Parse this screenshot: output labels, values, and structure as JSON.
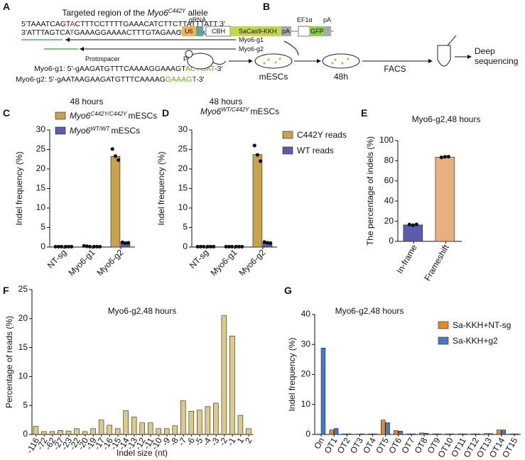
{
  "panel_labels": [
    "A",
    "B",
    "C",
    "D",
    "E",
    "F",
    "G"
  ],
  "diagram_a": {
    "title_pre": "Targeted region of the ",
    "title_gene": "Myo6",
    "title_allele": "C442Y",
    "title_post": " allele",
    "top_strand": [
      "5'TAAATCAGT",
      "A",
      "CTTTCCTTTTGAAACATCTTCTTATTTATT 3'"
    ],
    "bottom_strand": [
      "3'ATTTAGTCA",
      "T",
      "GAAAGGAAAACTTTGTAGAAGAATAAAATAA 5'"
    ],
    "guide_labels": [
      "Myo6-g1",
      "Myo6-g2"
    ],
    "protospacer": "Protospacer",
    "pam": "PAM",
    "g1_sequence": [
      "Myo6-g1: 5'-gAAGATGTTTCAAAAGGAAAGT",
      "ACTGAT",
      "-3'"
    ],
    "g2_sequence": [
      "Myo6-g2: 5'-gAATAAGAAGATGTTTCAAAAG",
      "GAAAG",
      "T",
      "-3'"
    ]
  },
  "diagram_b": {
    "construct": [
      "gRNA",
      "U6",
      "CBH",
      "SaCas9-KKH",
      "pA",
      "EF1α",
      "GFP",
      "pA"
    ],
    "cells": "mESCs",
    "time": "48h",
    "sorting": "FACS",
    "readout": [
      "Deep",
      "sequencing"
    ]
  },
  "chart_data": [
    {
      "panel": "C",
      "type": "bar",
      "title": "48 hours",
      "ylabel": "Indel frequency (%)",
      "categories": [
        "NT-sg",
        "Myo6-g1",
        "Myo6-g2"
      ],
      "ylim": [
        0,
        30
      ],
      "yticks": [
        0,
        5,
        10,
        15,
        20,
        25,
        30
      ],
      "series": [
        {
          "name": "Myo6",
          "genotype": "C442Y/C442Y",
          "cell": "mESCs",
          "color": "#c9a24c",
          "values": [
            0.1,
            0.2,
            23.2
          ],
          "points": [
            [
              0.1,
              0.1,
              0.1
            ],
            [
              0.3,
              0.2,
              0.1
            ],
            [
              25.1,
              23.3,
              22.3
            ]
          ]
        },
        {
          "name": "Myo6",
          "genotype": "WT/WT",
          "cell": "mESCs",
          "color": "#5b5cb0",
          "values": [
            0.1,
            0.1,
            1.0
          ],
          "points": [
            [
              0.1,
              0.1,
              0.1
            ],
            [
              0.1,
              0.1,
              0.1
            ],
            [
              1.2,
              1.0,
              1.1
            ]
          ]
        }
      ]
    },
    {
      "panel": "D",
      "type": "bar",
      "title": "48 hours",
      "subtitle_gene": "Myo6",
      "subtitle_genotype": "WT/C442Y",
      "subtitle_cell": "mESCs",
      "ylabel": "Indel frequency (%)",
      "categories": [
        "NT-sg",
        "Myo6-g1",
        "Myo6-g2"
      ],
      "ylim": [
        0,
        30
      ],
      "yticks": [
        0,
        5,
        10,
        15,
        20,
        25,
        30
      ],
      "series": [
        {
          "name": "C442Y reads",
          "color": "#c9a24c",
          "values": [
            0.1,
            0.1,
            23.7
          ],
          "points": [
            [
              0.1,
              0.1,
              0.1
            ],
            [
              0.1,
              0.1,
              0.1
            ],
            [
              26.0,
              23.6,
              22.0
            ]
          ]
        },
        {
          "name": "WT reads",
          "color": "#5b5cb0",
          "values": [
            0.1,
            0.1,
            1.1
          ],
          "points": [
            [
              0.1,
              0.1,
              0.1
            ],
            [
              0.1,
              0.1,
              0.1
            ],
            [
              1.3,
              1.1,
              1.0
            ]
          ]
        }
      ]
    },
    {
      "panel": "E",
      "type": "bar",
      "title": "Myo6-g2,48 hours",
      "ylabel": "The percentage of indels (%)",
      "categories": [
        "In-frame",
        "Frameshift"
      ],
      "ylim": [
        0,
        100
      ],
      "yticks": [
        0,
        20,
        40,
        60,
        80,
        100
      ],
      "values": [
        16.3,
        83.5
      ],
      "colors": [
        "#5b5cb0",
        "#e8b07e"
      ],
      "points": [
        [
          16.7,
          16.0,
          16.8
        ],
        [
          83.3,
          83.9,
          84.0
        ]
      ]
    },
    {
      "panel": "F",
      "type": "bar",
      "title": "Myo6-g2,48 hours",
      "ylabel": "Percentage of reads (%)",
      "xlabel": "Indel size (nt)",
      "categories": [
        "-116",
        "-72",
        "-62",
        "-27",
        "-23",
        "-22",
        "-20",
        "-19",
        "-17",
        "-16",
        "-15",
        "-14",
        "-13",
        "-12",
        "-11",
        "-10",
        "-9",
        "-8",
        "-7",
        "-6",
        "-5",
        "-4",
        "-3",
        "-2",
        "-1",
        "1",
        "2"
      ],
      "values": [
        1.4,
        0.5,
        0.5,
        0.7,
        0.6,
        1.0,
        0.5,
        1.0,
        2.5,
        1.6,
        1.0,
        4.1,
        3.0,
        2.0,
        2.0,
        1.0,
        1.0,
        1.5,
        5.8,
        4.0,
        4.2,
        4.8,
        5.4,
        20.5,
        17.0,
        3.3,
        1.0
      ],
      "color": "#dccb84",
      "ylim": [
        0,
        25
      ],
      "yticks": [
        0,
        5,
        10,
        15,
        20,
        25
      ]
    },
    {
      "panel": "G",
      "type": "bar",
      "title": "Myo6-g2,48 hours",
      "ylabel": "Indel frequency (%)",
      "categories": [
        "On",
        "OT1",
        "OT2",
        "OT3",
        "OT4",
        "OT5",
        "OT6",
        "OT7",
        "OT8",
        "OT9",
        "OT10",
        "OT11",
        "OT12",
        "OT13",
        "OT14",
        "OT15"
      ],
      "ylim": [
        0,
        40
      ],
      "yticks": [
        0,
        10,
        20,
        30,
        40
      ],
      "series": [
        {
          "name": "Sa-KKH+NT-sg",
          "color": "#e08c2c",
          "values": [
            0.1,
            1.5,
            0.2,
            0.1,
            0.2,
            4.8,
            1.3,
            0.2,
            0.5,
            0.2,
            0.2,
            0.2,
            0.2,
            0.3,
            1.5,
            0.2
          ]
        },
        {
          "name": "Sa-KKH+g2",
          "color": "#4a78c8",
          "values": [
            28.8,
            2.0,
            0.2,
            0.2,
            0.2,
            3.9,
            1.1,
            0.2,
            0.4,
            0.2,
            0.2,
            0.2,
            0.2,
            0.3,
            1.5,
            0.2
          ]
        }
      ]
    }
  ]
}
